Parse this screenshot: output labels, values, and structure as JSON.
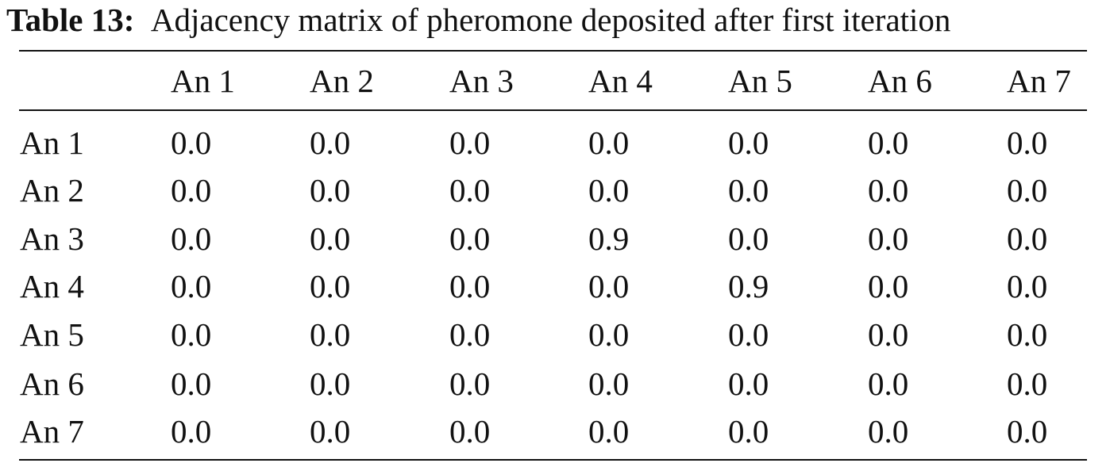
{
  "caption": {
    "label": "Table 13:",
    "text": "Adjacency matrix of pheromone deposited after first iteration"
  },
  "table": {
    "columns": [
      "",
      "An 1",
      "An 2",
      "An 3",
      "An 4",
      "An 5",
      "An 6",
      "An 7"
    ],
    "rows": [
      {
        "label": "An 1",
        "values": [
          "0.0",
          "0.0",
          "0.0",
          "0.0",
          "0.0",
          "0.0",
          "0.0"
        ]
      },
      {
        "label": "An 2",
        "values": [
          "0.0",
          "0.0",
          "0.0",
          "0.0",
          "0.0",
          "0.0",
          "0.0"
        ]
      },
      {
        "label": "An 3",
        "values": [
          "0.0",
          "0.0",
          "0.0",
          "0.9",
          "0.0",
          "0.0",
          "0.0"
        ]
      },
      {
        "label": "An 4",
        "values": [
          "0.0",
          "0.0",
          "0.0",
          "0.0",
          "0.9",
          "0.0",
          "0.0"
        ]
      },
      {
        "label": "An 5",
        "values": [
          "0.0",
          "0.0",
          "0.0",
          "0.0",
          "0.0",
          "0.0",
          "0.0"
        ]
      },
      {
        "label": "An 6",
        "values": [
          "0.0",
          "0.0",
          "0.0",
          "0.0",
          "0.0",
          "0.0",
          "0.0"
        ]
      },
      {
        "label": "An 7",
        "values": [
          "0.0",
          "0.0",
          "0.0",
          "0.0",
          "0.0",
          "0.0",
          "0.0"
        ]
      }
    ]
  }
}
